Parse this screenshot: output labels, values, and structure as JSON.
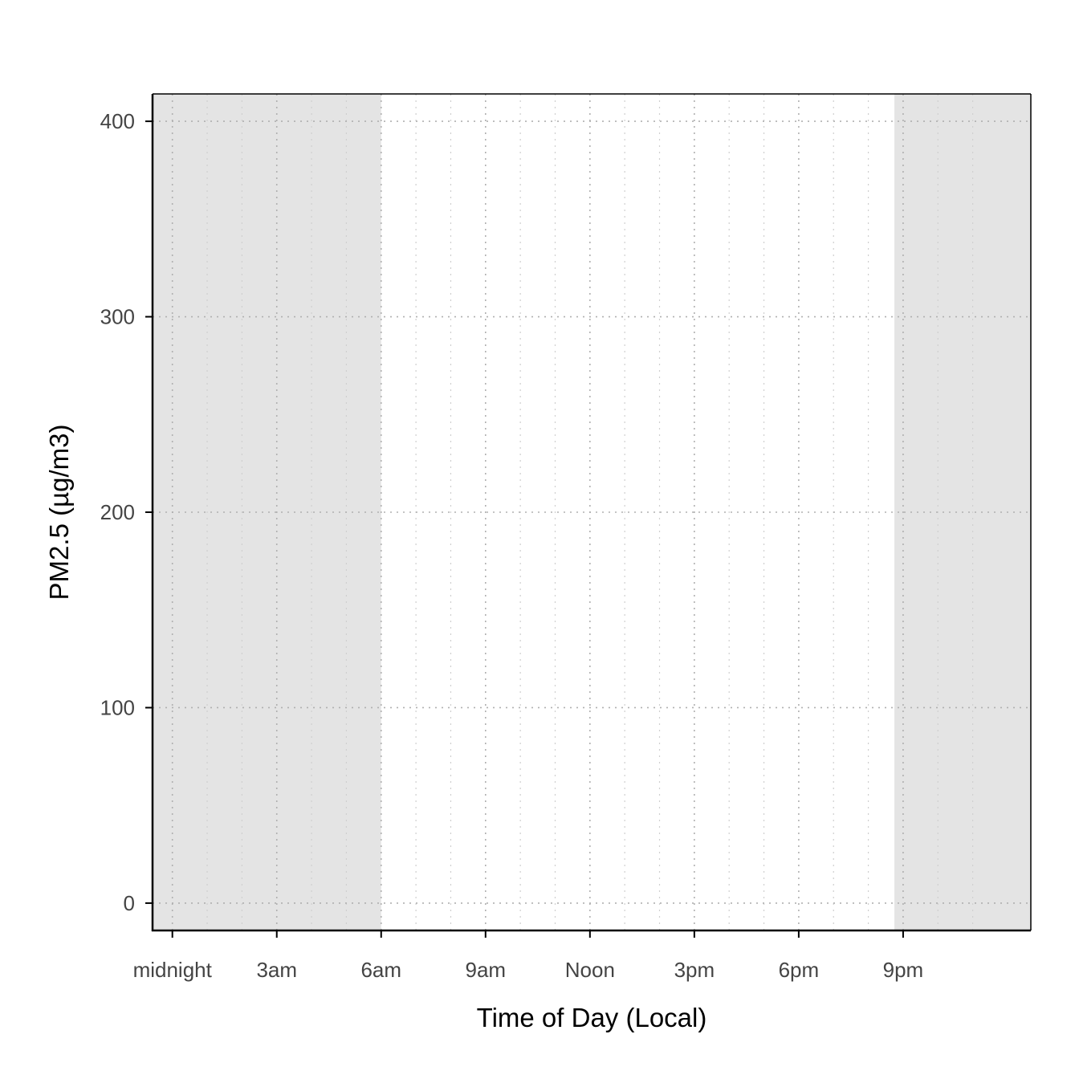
{
  "chart_data": {
    "type": "line",
    "title": "",
    "xlabel": "Time of Day (Local)",
    "ylabel": "PM2.5 (µg/m3)",
    "x_unit": "hour of day",
    "xlim": [
      -0.57,
      24.67
    ],
    "ylim": [
      -14,
      414
    ],
    "x_ticks": [
      {
        "hour": 0,
        "label": "midnight"
      },
      {
        "hour": 3,
        "label": "3am"
      },
      {
        "hour": 6,
        "label": "6am"
      },
      {
        "hour": 9,
        "label": "9am"
      },
      {
        "hour": 12,
        "label": "Noon"
      },
      {
        "hour": 15,
        "label": "3pm"
      },
      {
        "hour": 18,
        "label": "6pm"
      },
      {
        "hour": 21,
        "label": "9pm"
      }
    ],
    "x_minor_ticks_hours": [
      1,
      2,
      4,
      5,
      7,
      8,
      10,
      11,
      13,
      14,
      16,
      17,
      19,
      20,
      22,
      23
    ],
    "y_ticks": [
      0,
      100,
      200,
      300,
      400
    ],
    "night_shading": [
      {
        "from_hour": -0.57,
        "to_hour": 6.0
      },
      {
        "from_hour": 20.75,
        "to_hour": 24.67
      }
    ],
    "series": [],
    "grid": true,
    "grid_style": "dotted",
    "colors": {
      "night": "#e4e4e4",
      "grid_major": "#b0b0b0",
      "grid_minor": "#cfcfcf",
      "axis": "#000000",
      "tick_text": "#444444",
      "title_text": "#000000"
    }
  }
}
